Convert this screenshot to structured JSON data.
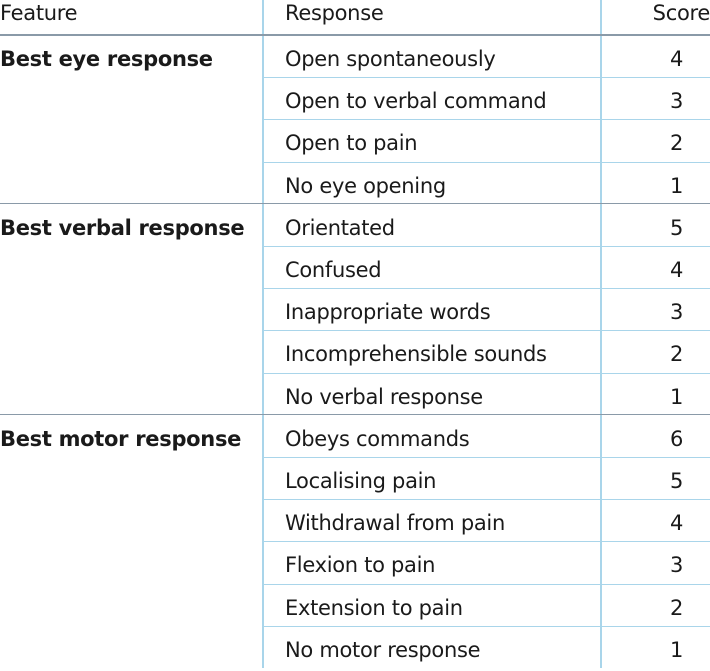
{
  "header": {
    "feature": "Feature",
    "response": "Response",
    "score": "Score"
  },
  "groups": [
    {
      "feature": "Best eye response",
      "rows": [
        {
          "response": "Open spontaneously",
          "score": 4
        },
        {
          "response": "Open to verbal command",
          "score": 3
        },
        {
          "response": "Open to pain",
          "score": 2
        },
        {
          "response": "No eye opening",
          "score": 1
        }
      ]
    },
    {
      "feature": "Best verbal response",
      "rows": [
        {
          "response": "Orientated",
          "score": 5
        },
        {
          "response": "Confused",
          "score": 4
        },
        {
          "response": "Inappropriate words",
          "score": 3
        },
        {
          "response": "Incomprehensible sounds",
          "score": 2
        },
        {
          "response": "No verbal response",
          "score": 1
        }
      ]
    },
    {
      "feature": "Best motor response",
      "rows": [
        {
          "response": "Obeys commands",
          "score": 6
        },
        {
          "response": "Localising pain",
          "score": 5
        },
        {
          "response": "Withdrawal from pain",
          "score": 4
        },
        {
          "response": "Flexion to pain",
          "score": 3
        },
        {
          "response": "Extension to pain",
          "score": 2
        },
        {
          "response": "No motor response",
          "score": 1
        }
      ]
    }
  ]
}
